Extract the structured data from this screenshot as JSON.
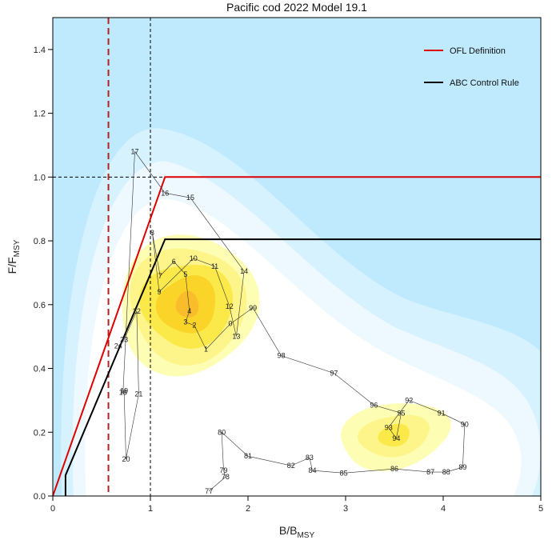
{
  "chart_data": {
    "type": "line",
    "title": "Pacific cod 2022 Model 19.1",
    "xlabel_main": "B/B",
    "xlabel_sub": "MSY",
    "ylabel_main": "F/F",
    "ylabel_sub": "MSY",
    "xlim": [
      0,
      5
    ],
    "ylim": [
      0,
      1.5
    ],
    "x_ticks": [
      0,
      1,
      2,
      3,
      4,
      5
    ],
    "x_tick_labels": [
      "0",
      "1",
      "2",
      "3",
      "4",
      "5"
    ],
    "y_ticks": [
      0,
      0.2,
      0.4,
      0.6,
      0.8,
      1.0,
      1.2,
      1.4
    ],
    "y_tick_labels": [
      "0.0",
      "0.2",
      "0.4",
      "0.6",
      "0.8",
      "1.0",
      "1.2",
      "1.4"
    ],
    "colors": {
      "background": "#bfeafd",
      "density_levels": [
        "#bfeafd",
        "#d6f2fe",
        "#eef9ff",
        "#ffffff",
        "#fdfdb4",
        "#fdf58a",
        "#fbe94a",
        "#fbd42a",
        "#f9bc2a"
      ],
      "ofl": "#dd0000",
      "abc": "#000000",
      "bref": "#b22222",
      "trajectory": "#333333"
    },
    "series": [
      {
        "name": "OFL Definition",
        "x": [
          0,
          1.15,
          5
        ],
        "y": [
          0,
          1.0,
          1.0
        ]
      },
      {
        "name": "ABC Control Rule",
        "x": [
          0.13,
          0.13,
          1.15,
          5
        ],
        "y": [
          0,
          0.065,
          0.805,
          0.805
        ]
      }
    ],
    "reference_lines": {
      "b_vertical_red_dashed": 0.57,
      "b_vertical_black_dashed": 1.0,
      "f_horizontal_black_dashed": 1.0
    },
    "trajectory": {
      "labels": [
        "77",
        "78",
        "79",
        "80",
        "81",
        "82",
        "83",
        "84",
        "85",
        "86",
        "87",
        "88",
        "89",
        "90",
        "91",
        "92",
        "93",
        "94",
        "95",
        "96",
        "97",
        "98",
        "99",
        "0",
        "1",
        "2",
        "3",
        "4",
        "5",
        "6",
        "7",
        "8",
        "9",
        "10",
        "11",
        "12",
        "13",
        "14",
        "15",
        "16",
        "17",
        "18",
        "19",
        "20",
        "21",
        "22",
        "23",
        "24"
      ],
      "x": [
        1.6,
        1.77,
        1.75,
        1.73,
        2.0,
        2.44,
        2.63,
        2.66,
        2.98,
        3.5,
        3.87,
        4.03,
        4.2,
        4.22,
        3.98,
        3.65,
        3.44,
        3.52,
        3.57,
        3.29,
        2.88,
        2.34,
        2.05,
        1.82,
        1.57,
        1.45,
        1.36,
        1.4,
        1.36,
        1.24,
        1.1,
        1.02,
        1.09,
        1.44,
        1.66,
        1.81,
        1.88,
        1.96,
        1.41,
        1.15,
        0.84,
        0.72,
        0.73,
        0.75,
        0.88,
        0.86,
        0.73,
        0.67
      ],
      "y": [
        0.015,
        0.06,
        0.08,
        0.2,
        0.125,
        0.095,
        0.12,
        0.08,
        0.072,
        0.085,
        0.075,
        0.075,
        0.09,
        0.225,
        0.26,
        0.3,
        0.215,
        0.18,
        0.26,
        0.285,
        0.385,
        0.44,
        0.59,
        0.54,
        0.46,
        0.535,
        0.545,
        0.58,
        0.695,
        0.735,
        0.69,
        0.825,
        0.64,
        0.745,
        0.72,
        0.595,
        0.5,
        0.705,
        0.935,
        0.95,
        1.08,
        0.325,
        0.33,
        0.115,
        0.32,
        0.58,
        0.49,
        0.47
      ]
    },
    "legend": {
      "placement": "top-right",
      "entries": [
        "OFL Definition",
        "ABC Control Rule"
      ]
    }
  }
}
